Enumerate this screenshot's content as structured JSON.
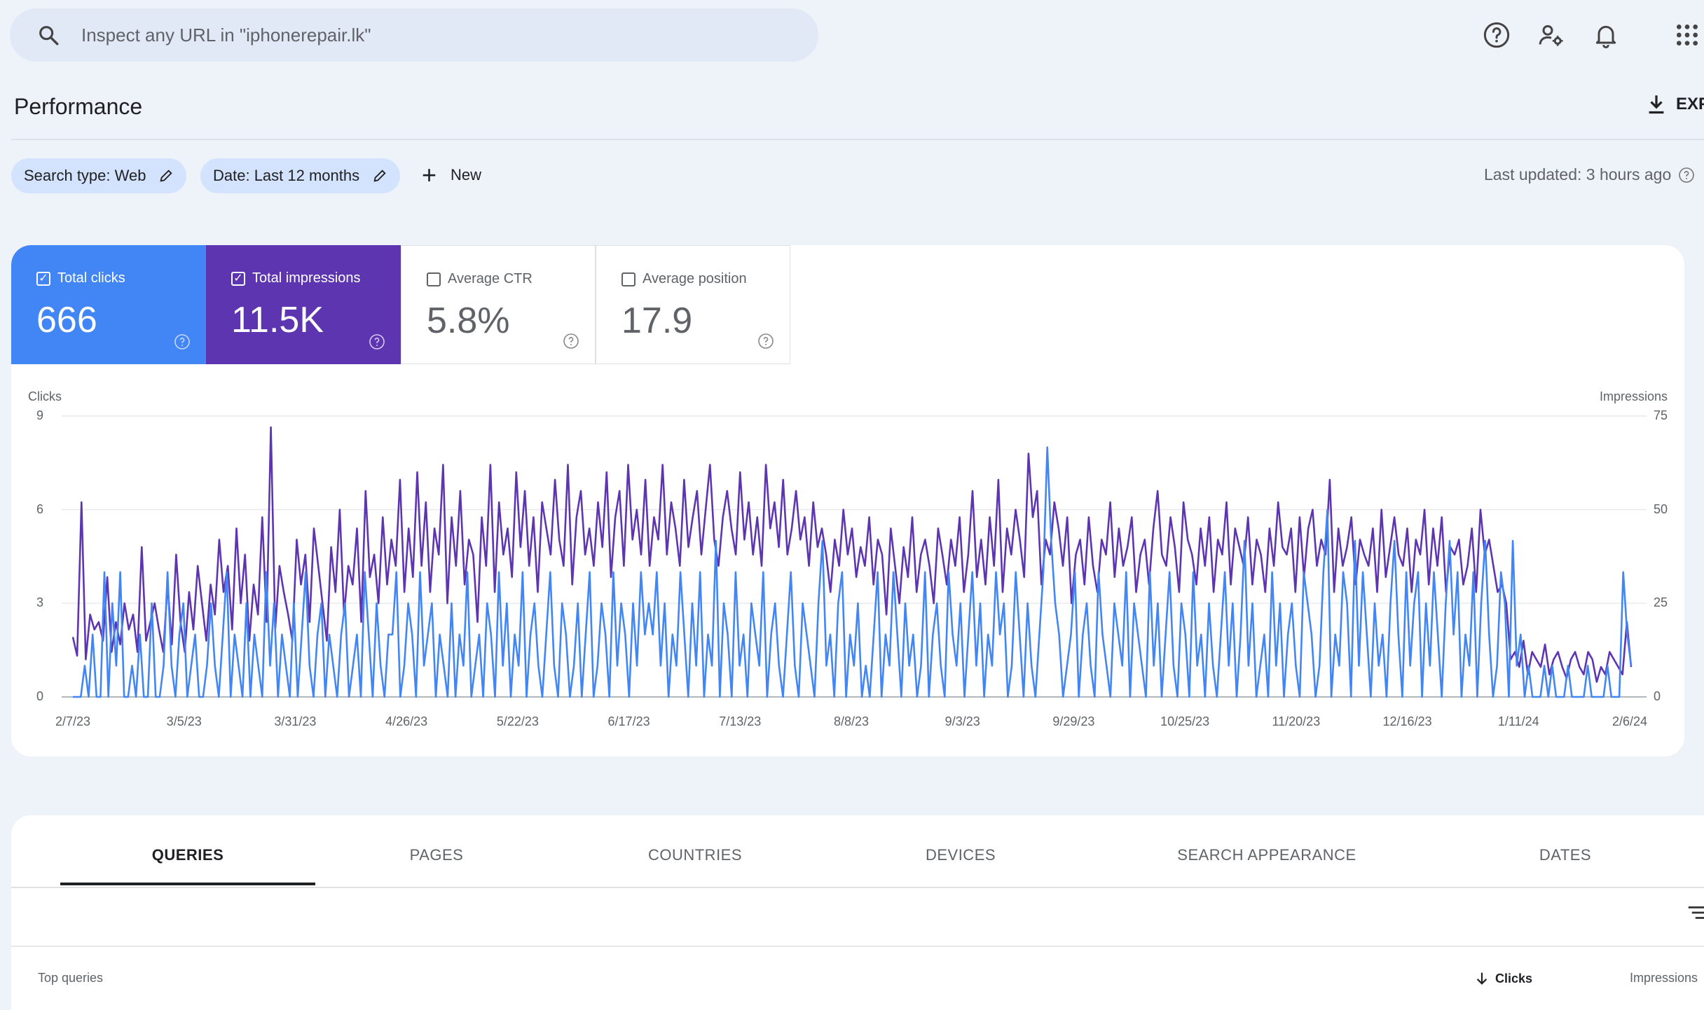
{
  "search": {
    "placeholder": "Inspect any URL in \"iphonerepair.lk\""
  },
  "header": {
    "title": "Performance",
    "export_label": "EXPORT"
  },
  "filters": {
    "search_type": "Search type: Web",
    "date": "Date: Last 12 months",
    "new_label": "New",
    "last_updated": "Last updated: 3 hours ago"
  },
  "metrics": {
    "clicks": {
      "label": "Total clicks",
      "value": "666",
      "checked": true
    },
    "impressions": {
      "label": "Total impressions",
      "value": "11.5K",
      "checked": true
    },
    "ctr": {
      "label": "Average CTR",
      "value": "5.8%",
      "checked": false
    },
    "position": {
      "label": "Average position",
      "value": "17.9",
      "checked": false
    }
  },
  "colors": {
    "clicks": "#4285f4",
    "impressions": "#5e35b1"
  },
  "chart_data": {
    "type": "line",
    "left_axis_title": "Clicks",
    "right_axis_title": "Impressions",
    "left_ticks": [
      "0",
      "3",
      "6",
      "9"
    ],
    "right_ticks": [
      "0",
      "25",
      "50",
      "75"
    ],
    "left_ylim": [
      0,
      9
    ],
    "right_ylim": [
      0,
      75
    ],
    "x_tick_labels": [
      "2/7/23",
      "3/5/23",
      "3/31/23",
      "4/26/23",
      "5/22/23",
      "6/17/23",
      "7/13/23",
      "8/8/23",
      "9/3/23",
      "9/29/23",
      "10/25/23",
      "11/20/23",
      "12/16/23",
      "1/11/24",
      "2/6/24"
    ],
    "x_range": [
      "2/7/23",
      "2/6/24"
    ],
    "series": [
      {
        "name": "Clicks",
        "axis": "left",
        "values": [
          0,
          0,
          0,
          1,
          0,
          2,
          0,
          0,
          4,
          0,
          3,
          1,
          4,
          0,
          0,
          1,
          0,
          2,
          0,
          0,
          3,
          0,
          0,
          1,
          4,
          1,
          0,
          2,
          3,
          0,
          1,
          2,
          0,
          0,
          1,
          3,
          1,
          0,
          2,
          4,
          0,
          2,
          1,
          0,
          3,
          0,
          2,
          1,
          0,
          4,
          1,
          3,
          0,
          2,
          1,
          0,
          3,
          0,
          2,
          4,
          1,
          0,
          2,
          3,
          0,
          2,
          1,
          0,
          2,
          3,
          0,
          1,
          2,
          0,
          4,
          2,
          0,
          3,
          1,
          0,
          2,
          2,
          4,
          0,
          1,
          3,
          2,
          0,
          4,
          1,
          2,
          3,
          0,
          2,
          1,
          0,
          3,
          0,
          2,
          1,
          4,
          0,
          1,
          2,
          0,
          3,
          2,
          0,
          4,
          1,
          3,
          0,
          2,
          1,
          4,
          0,
          2,
          3,
          1,
          0,
          2,
          4,
          1,
          0,
          3,
          2,
          0,
          1,
          3,
          0,
          2,
          4,
          0,
          1,
          3,
          2,
          0,
          4,
          1,
          3,
          2,
          0,
          3,
          1,
          4,
          2,
          3,
          2,
          4,
          1,
          3,
          0,
          2,
          1,
          4,
          2,
          0,
          3,
          1,
          4,
          0,
          2,
          1,
          5,
          0,
          3,
          2,
          0,
          4,
          1,
          2,
          0,
          3,
          2,
          1,
          4,
          0,
          2,
          3,
          1,
          0,
          2,
          4,
          1,
          0,
          3,
          2,
          1,
          0,
          3,
          5,
          1,
          2,
          0,
          3,
          4,
          0,
          2,
          1,
          3,
          0,
          1,
          0,
          2,
          4,
          0,
          2,
          1,
          4,
          2,
          0,
          3,
          1,
          2,
          0,
          1,
          4,
          0,
          2,
          3,
          1,
          0,
          4,
          2,
          1,
          3,
          0,
          2,
          4,
          1,
          3,
          0,
          2,
          1,
          4,
          2,
          3,
          0,
          1,
          4,
          2,
          0,
          3,
          1,
          0,
          2,
          4,
          8,
          5,
          3,
          2,
          0,
          1,
          2,
          4,
          0,
          2,
          3,
          1,
          0,
          4,
          2,
          1,
          0,
          3,
          2,
          1,
          4,
          0,
          3,
          2,
          1,
          0,
          4,
          1,
          3,
          0,
          2,
          4,
          1,
          0,
          3,
          2,
          0,
          4,
          1,
          2,
          0,
          3,
          1,
          0,
          2,
          4,
          1,
          3,
          0,
          2,
          5,
          1,
          3,
          0,
          1,
          2,
          0,
          4,
          1,
          3,
          0,
          2,
          3,
          1,
          0,
          4,
          3,
          2,
          0,
          1,
          4,
          6,
          0,
          2,
          1,
          4,
          3,
          0,
          5,
          1,
          4,
          2,
          0,
          3,
          1,
          2,
          0,
          3,
          5,
          2,
          0,
          4,
          1,
          3,
          4,
          0,
          3,
          1,
          4,
          2,
          0,
          3,
          5,
          2,
          4,
          0,
          2,
          1,
          4,
          0,
          3,
          5,
          2,
          0,
          1,
          4,
          3,
          0,
          5,
          1,
          2,
          0,
          1,
          0,
          0,
          0,
          1,
          0,
          1,
          0,
          0,
          0,
          1,
          0,
          0,
          0,
          0,
          1,
          0,
          0,
          0,
          0,
          1,
          0,
          0,
          0,
          4,
          2,
          1
        ]
      },
      {
        "name": "Impressions",
        "axis": "right",
        "values": [
          16,
          11,
          52,
          10,
          22,
          18,
          20,
          15,
          32,
          12,
          20,
          14,
          25,
          18,
          22,
          12,
          40,
          15,
          20,
          25,
          18,
          12,
          30,
          14,
          38,
          20,
          12,
          28,
          18,
          35,
          25,
          15,
          30,
          22,
          42,
          28,
          35,
          18,
          45,
          25,
          38,
          15,
          30,
          22,
          48,
          20,
          72,
          18,
          35,
          28,
          22,
          15,
          42,
          30,
          38,
          20,
          45,
          35,
          25,
          15,
          40,
          28,
          50,
          22,
          35,
          30,
          45,
          20,
          55,
          32,
          38,
          25,
          48,
          30,
          42,
          35,
          58,
          28,
          45,
          32,
          60,
          35,
          52,
          28,
          45,
          38,
          62,
          25,
          48,
          35,
          55,
          30,
          42,
          38,
          20,
          48,
          35,
          62,
          28,
          52,
          38,
          45,
          32,
          60,
          40,
          55,
          35,
          48,
          28,
          52,
          45,
          38,
          58,
          42,
          35,
          62,
          30,
          48,
          55,
          38,
          45,
          35,
          52,
          40,
          60,
          32,
          48,
          55,
          35,
          62,
          42,
          50,
          38,
          58,
          35,
          48,
          42,
          62,
          38,
          52,
          45,
          35,
          58,
          40,
          48,
          55,
          38,
          50,
          62,
          42,
          35,
          48,
          55,
          45,
          38,
          60,
          42,
          52,
          38,
          48,
          35,
          62,
          45,
          52,
          40,
          58,
          38,
          45,
          55,
          42,
          48,
          35,
          52,
          40,
          45,
          38,
          28,
          42,
          35,
          50,
          38,
          45,
          32,
          40,
          35,
          48,
          30,
          42,
          38,
          22,
          45,
          35,
          25,
          40,
          32,
          48,
          28,
          38,
          42,
          35,
          25,
          45,
          38,
          30,
          42,
          35,
          48,
          28,
          38,
          55,
          32,
          42,
          30,
          48,
          35,
          58,
          28,
          45,
          38,
          50,
          42,
          32,
          65,
          48,
          55,
          30,
          42,
          38,
          52,
          45,
          35,
          48,
          25,
          38,
          42,
          30,
          48,
          35,
          28,
          42,
          38,
          52,
          32,
          45,
          35,
          40,
          48,
          28,
          38,
          42,
          30,
          45,
          55,
          38,
          35,
          48,
          40,
          28,
          52,
          42,
          38,
          30,
          45,
          35,
          48,
          28,
          42,
          38,
          52,
          30,
          45,
          40,
          35,
          48,
          30,
          42,
          38,
          28,
          45,
          35,
          52,
          40,
          38,
          45,
          28,
          48,
          32,
          45,
          50,
          35,
          42,
          38,
          58,
          28,
          45,
          35,
          40,
          48,
          30,
          42,
          38,
          35,
          45,
          28,
          50,
          32,
          40,
          48,
          38,
          35,
          45,
          28,
          42,
          38,
          50,
          30,
          45,
          35,
          48,
          28,
          40,
          38,
          42,
          30,
          35,
          45,
          28,
          50,
          38,
          42,
          35,
          28,
          30,
          25,
          10,
          12,
          8,
          15,
          6,
          12,
          10,
          8,
          14,
          6,
          10,
          12,
          8,
          5,
          10,
          12,
          8,
          6,
          12,
          10,
          4,
          8,
          6,
          12,
          10,
          8,
          6,
          20,
          8
        ]
      }
    ]
  },
  "tabs": {
    "items": [
      "QUERIES",
      "PAGES",
      "COUNTRIES",
      "DEVICES",
      "SEARCH APPEARANCE",
      "DATES"
    ],
    "active": "QUERIES"
  },
  "table": {
    "first_col": "Top queries",
    "sort_col": "Clicks",
    "next_col": "Impressions"
  }
}
